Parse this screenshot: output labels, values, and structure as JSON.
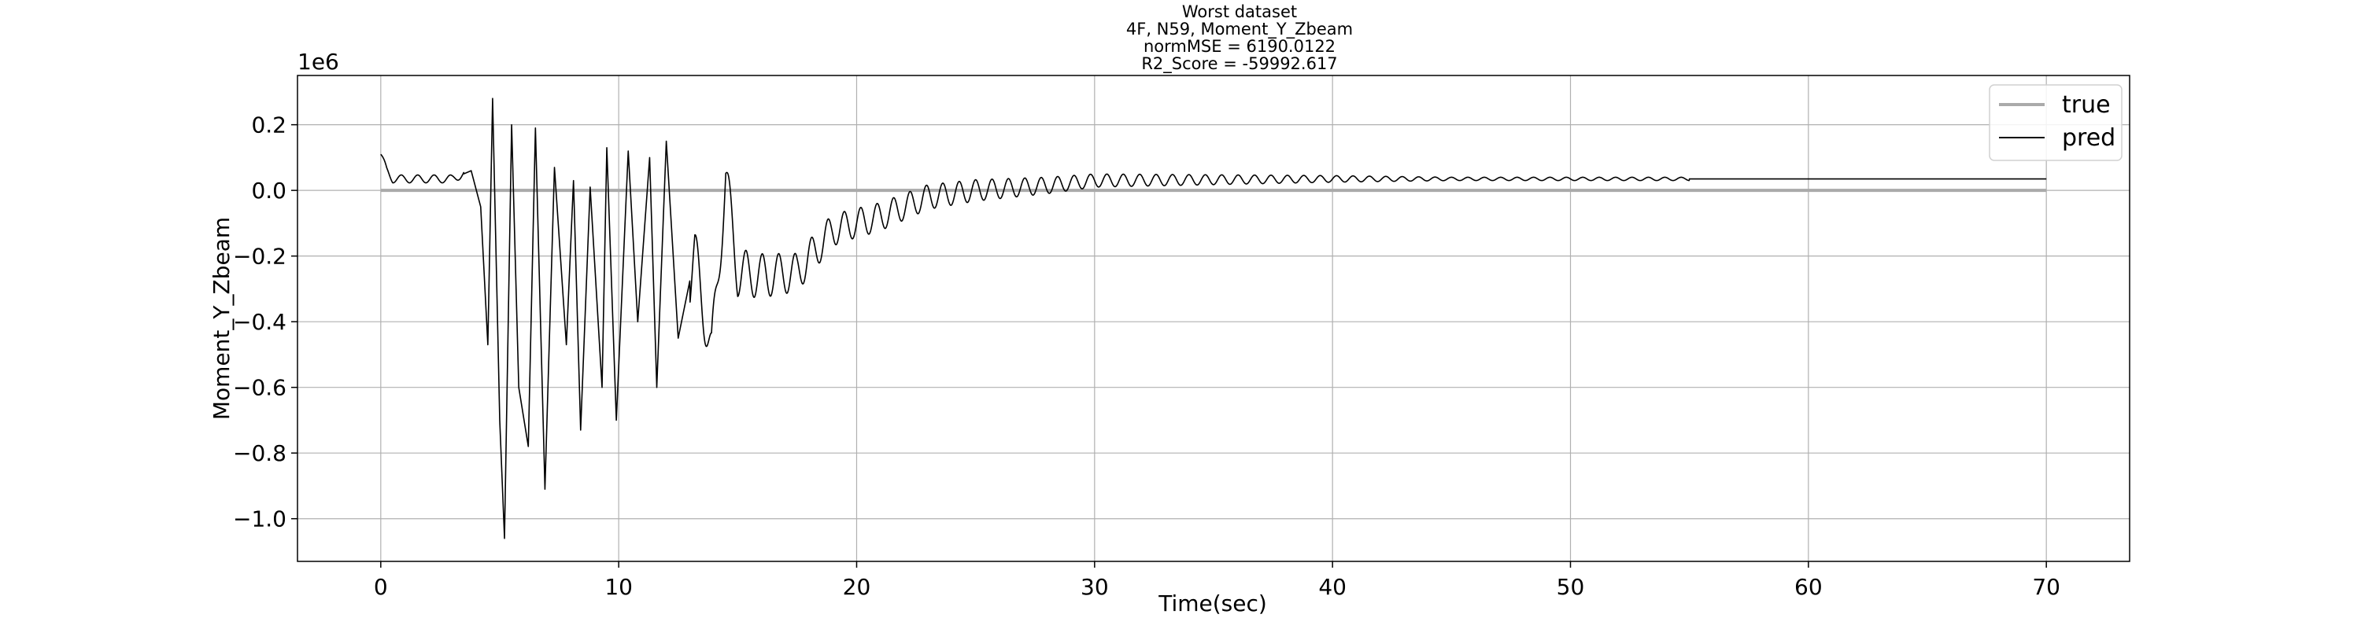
{
  "chart_data": {
    "type": "line",
    "title_lines": [
      "Worst dataset",
      "4F, N59, Moment_Y_Zbeam",
      "normMSE = 6190.0122",
      "R2_Score = -59992.617"
    ],
    "xlabel": "Time(sec)",
    "ylabel": "Moment_Y_Zbeam",
    "y_offset_label": "1e6",
    "xlim": [
      -3.5,
      73.5
    ],
    "ylim": [
      -1.13,
      0.35
    ],
    "y_scale_multiplier": 1000000,
    "x_ticks": [
      0,
      10,
      20,
      30,
      40,
      50,
      60,
      70
    ],
    "x_tick_labels": [
      "0",
      "10",
      "20",
      "30",
      "40",
      "50",
      "60",
      "70"
    ],
    "y_ticks": [
      0.2,
      0.0,
      -0.2,
      -0.4,
      -0.6,
      -0.8,
      -1.0
    ],
    "y_tick_labels": [
      "0.2",
      "0.0",
      "−0.2",
      "−0.4",
      "−0.6",
      "−0.8",
      "−1.0"
    ],
    "grid": true,
    "legend_position": "top-right",
    "series": [
      {
        "name": "true",
        "color": "#aaaaaa",
        "x": [
          0,
          70
        ],
        "y": [
          0.0,
          0.0
        ]
      },
      {
        "name": "pred",
        "color": "#000000",
        "description_points": [
          [
            0.0,
            0.11
          ],
          [
            0.25,
            0.06
          ],
          [
            0.5,
            0.035
          ],
          [
            1.0,
            0.035
          ],
          [
            2.0,
            0.035
          ],
          [
            3.0,
            0.035
          ],
          [
            3.8,
            0.06
          ],
          [
            4.2,
            -0.05
          ],
          [
            4.5,
            -0.47
          ],
          [
            4.7,
            0.28
          ],
          [
            5.0,
            -0.7
          ],
          [
            5.2,
            -1.06
          ],
          [
            5.5,
            0.2
          ],
          [
            5.8,
            -0.6
          ],
          [
            6.2,
            -0.78
          ],
          [
            6.5,
            0.19
          ],
          [
            6.9,
            -0.91
          ],
          [
            7.3,
            0.07
          ],
          [
            7.8,
            -0.47
          ],
          [
            8.1,
            0.03
          ],
          [
            8.4,
            -0.73
          ],
          [
            8.8,
            0.01
          ],
          [
            9.3,
            -0.6
          ],
          [
            9.5,
            0.13
          ],
          [
            9.9,
            -0.7
          ],
          [
            10.4,
            0.12
          ],
          [
            10.8,
            -0.4
          ],
          [
            11.3,
            0.1
          ],
          [
            11.6,
            -0.6
          ],
          [
            12.0,
            0.15
          ],
          [
            12.5,
            -0.45
          ],
          [
            13.2,
            -0.2
          ],
          [
            13.9,
            -0.5
          ],
          [
            14.5,
            0.04
          ],
          [
            15.0,
            -0.25
          ],
          [
            16.0,
            -0.26
          ],
          [
            17.5,
            -0.25
          ],
          [
            19.0,
            -0.12
          ],
          [
            20.0,
            -0.1
          ],
          [
            21.0,
            -0.08
          ],
          [
            23.0,
            -0.02
          ],
          [
            25.0,
            0.0
          ],
          [
            28.0,
            0.015
          ],
          [
            30.0,
            0.03
          ],
          [
            40.0,
            0.035
          ],
          [
            70.0,
            0.035
          ]
        ]
      }
    ]
  }
}
